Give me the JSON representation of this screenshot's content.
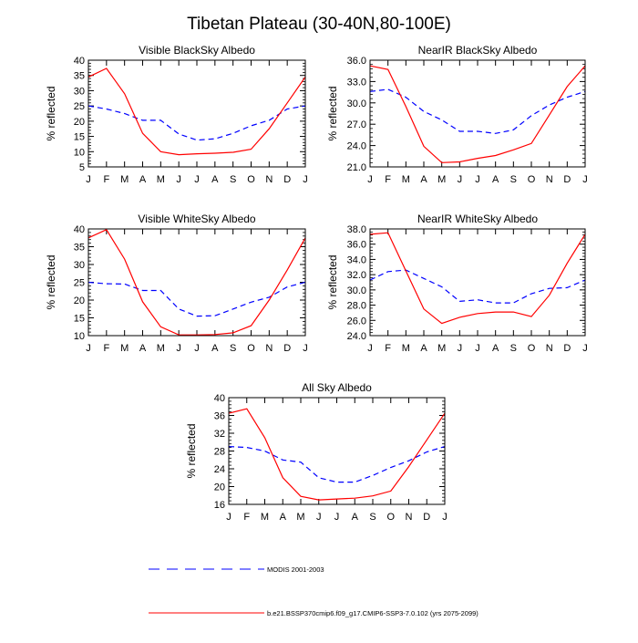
{
  "figure": {
    "title": "Tibetan Plateau (30-40N,80-100E)",
    "legend": [
      {
        "label": "MODIS 2001-2003",
        "color": "#0000ff",
        "style": "dashed"
      },
      {
        "label": "b.e21.BSSP370cmip6.f09_g17.CMIP6-SSP3-7.0.102 (yrs 2075-2099)",
        "color": "#ff0000",
        "style": "solid"
      }
    ]
  },
  "chart_data": [
    {
      "type": "line",
      "title": "Visible BlackSky Albedo",
      "ylabel": "% reflected",
      "categories": [
        "J",
        "F",
        "M",
        "A",
        "M",
        "J",
        "J",
        "A",
        "S",
        "O",
        "N",
        "D",
        "J"
      ],
      "ylim": [
        5,
        40
      ],
      "yticks": [
        5,
        10,
        15,
        20,
        25,
        30,
        35,
        40
      ],
      "ytick_labels": [
        "5",
        "10",
        "15",
        "20",
        "25",
        "30",
        "35",
        "40"
      ],
      "series": [
        {
          "name": "MODIS 2001-2003",
          "color": "#0000ff",
          "style": "dashed",
          "values": [
            25,
            24,
            22.5,
            20.3,
            20.3,
            15.8,
            13.8,
            14.2,
            16,
            18.5,
            20.3,
            24,
            25
          ]
        },
        {
          "name": "b.e21.BSSP370cmip6.f09_g17.CMIP6-SSP3-7.0.102 (yrs 2075-2099)",
          "color": "#ff0000",
          "style": "solid",
          "values": [
            34.5,
            37.3,
            29,
            16,
            10,
            9,
            9.3,
            9.5,
            9.8,
            10.8,
            17.5,
            26,
            34.5
          ]
        }
      ]
    },
    {
      "type": "line",
      "title": "NearIR BlackSky Albedo",
      "ylabel": "% reflected",
      "categories": [
        "J",
        "F",
        "M",
        "A",
        "M",
        "J",
        "J",
        "A",
        "S",
        "O",
        "N",
        "D",
        "J"
      ],
      "ylim": [
        21,
        36
      ],
      "yticks": [
        21,
        24,
        27,
        30,
        33,
        36
      ],
      "ytick_labels": [
        "21.0",
        "24.0",
        "27.0",
        "30.0",
        "33.0",
        "36.0"
      ],
      "series": [
        {
          "name": "MODIS 2001-2003",
          "color": "#0000ff",
          "style": "dashed",
          "values": [
            31.6,
            31.9,
            30.8,
            28.8,
            27.6,
            26,
            26,
            25.7,
            26.2,
            28.2,
            29.7,
            30.8,
            31.6
          ]
        },
        {
          "name": "b.e21.BSSP370cmip6.f09_g17.CMIP6-SSP3-7.0.102 (yrs 2075-2099)",
          "color": "#ff0000",
          "style": "solid",
          "values": [
            35.2,
            34.7,
            29.5,
            23.9,
            21.6,
            21.7,
            22.2,
            22.6,
            23.4,
            24.3,
            28.3,
            32.3,
            35.2
          ]
        }
      ]
    },
    {
      "type": "line",
      "title": "Visible WhiteSky Albedo",
      "ylabel": "% reflected",
      "categories": [
        "J",
        "F",
        "M",
        "A",
        "M",
        "J",
        "J",
        "A",
        "S",
        "O",
        "N",
        "D",
        "J"
      ],
      "ylim": [
        10,
        40
      ],
      "yticks": [
        10,
        15,
        20,
        25,
        30,
        35,
        40
      ],
      "ytick_labels": [
        "10",
        "15",
        "20",
        "25",
        "30",
        "35",
        "40"
      ],
      "series": [
        {
          "name": "MODIS 2001-2003",
          "color": "#0000ff",
          "style": "dashed",
          "values": [
            25,
            24.6,
            24.5,
            22.7,
            22.7,
            17.5,
            15.5,
            15.6,
            17.5,
            19.4,
            20.8,
            23.7,
            25
          ]
        },
        {
          "name": "b.e21.BSSP370cmip6.f09_g17.CMIP6-SSP3-7.0.102 (yrs 2075-2099)",
          "color": "#ff0000",
          "style": "solid",
          "values": [
            37.5,
            39.8,
            31.5,
            19.5,
            12.5,
            10.2,
            10.2,
            10.3,
            10.8,
            12.8,
            20,
            28.5,
            37.5
          ]
        }
      ]
    },
    {
      "type": "line",
      "title": "NearIR WhiteSky Albedo",
      "ylabel": "% reflected",
      "categories": [
        "J",
        "F",
        "M",
        "A",
        "M",
        "J",
        "J",
        "A",
        "S",
        "O",
        "N",
        "D",
        "J"
      ],
      "ylim": [
        24,
        38
      ],
      "yticks": [
        24,
        26,
        28,
        30,
        32,
        34,
        36,
        38
      ],
      "ytick_labels": [
        "24.0",
        "26.0",
        "28.0",
        "30.0",
        "32.0",
        "34.0",
        "36.0",
        "38.0"
      ],
      "series": [
        {
          "name": "MODIS 2001-2003",
          "color": "#0000ff",
          "style": "dashed",
          "values": [
            31.3,
            32.4,
            32.6,
            31.5,
            30.4,
            28.5,
            28.7,
            28.3,
            28.3,
            29.5,
            30.2,
            30.3,
            31.3
          ]
        },
        {
          "name": "b.e21.BSSP370cmip6.f09_g17.CMIP6-SSP3-7.0.102 (yrs 2075-2099)",
          "color": "#ff0000",
          "style": "solid",
          "values": [
            37.3,
            37.5,
            32.5,
            27.5,
            25.6,
            26.4,
            26.9,
            27.1,
            27.1,
            26.5,
            29.3,
            33.5,
            37.3
          ]
        }
      ]
    },
    {
      "type": "line",
      "title": "All Sky Albedo",
      "ylabel": "% reflected",
      "categories": [
        "J",
        "F",
        "M",
        "A",
        "M",
        "J",
        "J",
        "A",
        "S",
        "O",
        "N",
        "D",
        "J"
      ],
      "ylim": [
        16,
        40
      ],
      "yticks": [
        16,
        20,
        24,
        28,
        32,
        36,
        40
      ],
      "ytick_labels": [
        "16",
        "20",
        "24",
        "28",
        "32",
        "36",
        "40"
      ],
      "series": [
        {
          "name": "MODIS 2001-2003",
          "color": "#0000ff",
          "style": "dashed",
          "values": [
            29,
            28.8,
            28,
            26,
            25.5,
            22,
            21,
            21,
            22.5,
            24.3,
            25.8,
            27.8,
            29
          ]
        },
        {
          "name": "b.e21.BSSP370cmip6.f09_g17.CMIP6-SSP3-7.0.102 (yrs 2075-2099)",
          "color": "#ff0000",
          "style": "solid",
          "values": [
            36.5,
            37.5,
            31,
            22,
            17.8,
            17,
            17.2,
            17.4,
            17.9,
            19,
            24.5,
            30.5,
            36.5
          ]
        }
      ]
    }
  ]
}
